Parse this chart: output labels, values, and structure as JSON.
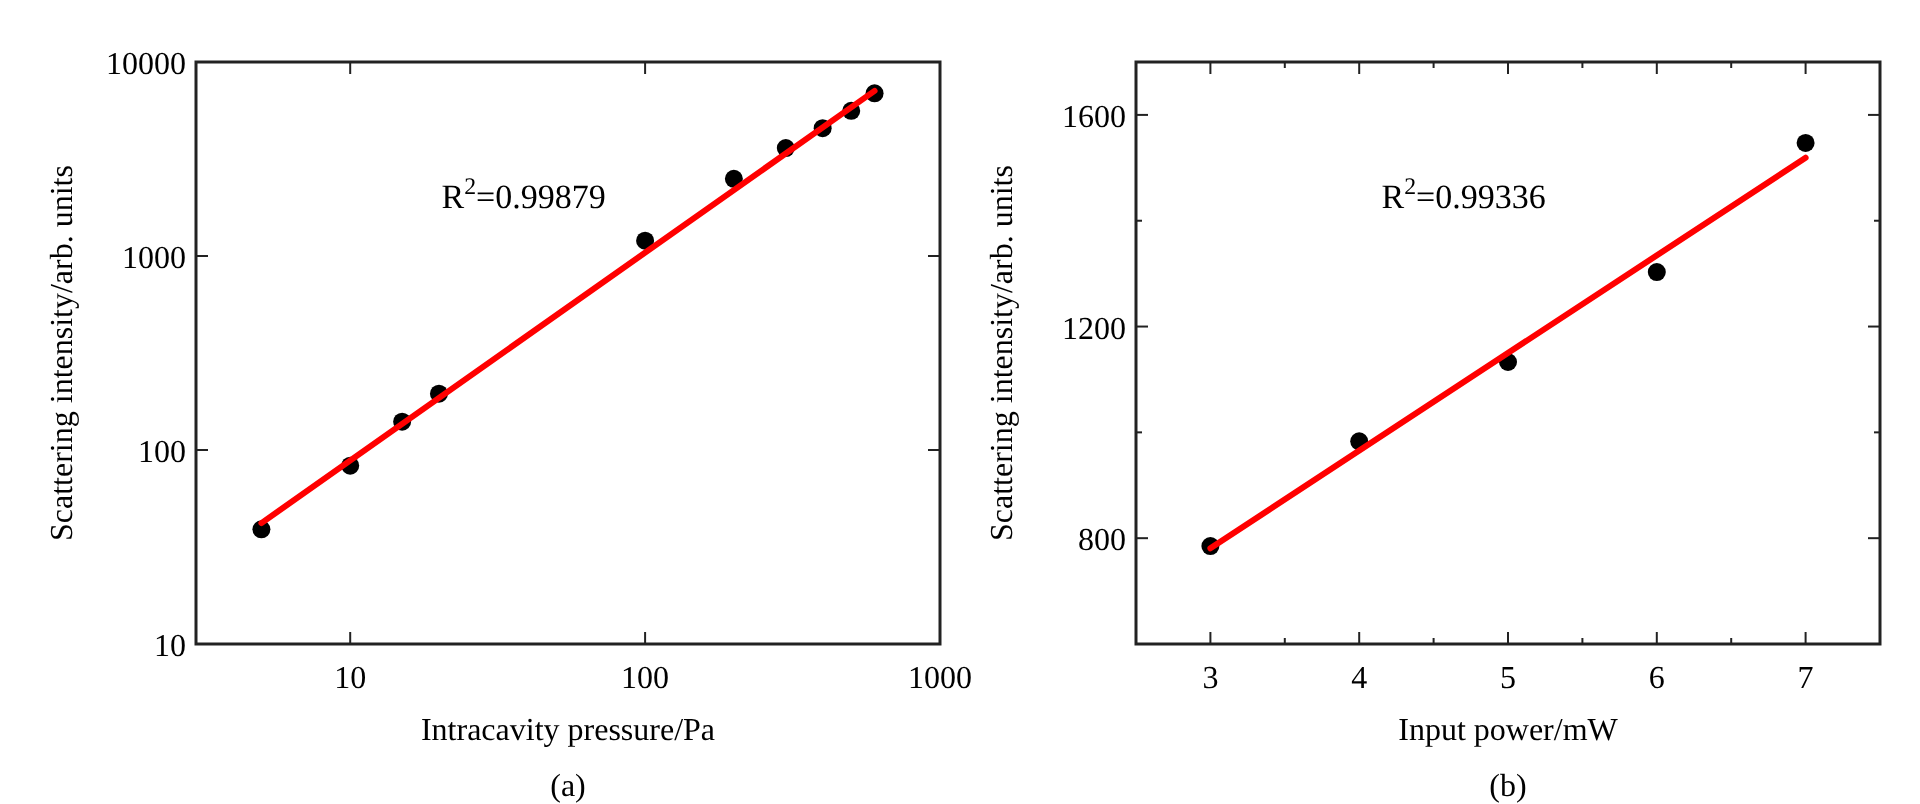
{
  "chart_data": [
    {
      "type": "scatter",
      "xlabel": "Intracavity pressure/Pa",
      "ylabel": "Scattering intensity/arb. units",
      "log": "xy",
      "xlim": [
        3,
        1000
      ],
      "ylim": [
        10,
        10000
      ],
      "xticks": [
        10,
        100,
        1000
      ],
      "yticks": [
        10,
        100,
        1000,
        10000
      ],
      "annotations": [
        "R$^{2}$=0.99879",
        "(a)"
      ],
      "series": [
        {
          "color": "#000000",
          "marker": "circle",
          "x": [
            5,
            10,
            15,
            20,
            100,
            200,
            300,
            400,
            500,
            600
          ],
          "values": [
            39,
            83,
            140,
            195,
            1200,
            2500,
            3600,
            4560,
            5600,
            6900
          ]
        },
        {
          "type": "line",
          "color": "#ff0000",
          "marker": "none",
          "x": [
            5,
            600
          ],
          "values": [
            42,
            7100
          ]
        }
      ]
    },
    {
      "type": "scatter",
      "xlabel": "Input power/mW",
      "ylabel": "Scattering intensity/arb. units",
      "xlim": [
        2.5,
        7.5
      ],
      "ylim": [
        600,
        1700
      ],
      "xticks": [
        {
          "value": 3,
          "label": "3"
        },
        {
          "value": 3.5,
          "label": null
        },
        {
          "value": 4,
          "label": "4"
        },
        {
          "value": 4.5,
          "label": null
        },
        {
          "value": 5,
          "label": "5"
        },
        {
          "value": 5.5,
          "label": null
        },
        {
          "value": 6,
          "label": "6"
        },
        {
          "value": 6.5,
          "label": null
        },
        {
          "value": 7,
          "label": "7"
        }
      ],
      "yticks": [
        {
          "value": 800,
          "label": "800"
        },
        {
          "value": 1000,
          "label": null
        },
        {
          "value": 1200,
          "label": "1200"
        },
        {
          "value": 1400,
          "label": null
        },
        {
          "value": 1600,
          "label": "1600"
        }
      ],
      "annotations": [
        "R$^{2}$=0.99336",
        "(b)"
      ],
      "series": [
        {
          "color": "#000000",
          "marker": "circle",
          "x": [
            3,
            4,
            5,
            6,
            7
          ],
          "values": [
            785,
            983,
            1133,
            1303,
            1547
          ]
        },
        {
          "type": "line",
          "color": "#ff0000",
          "marker": "none",
          "x": [
            3,
            7
          ],
          "values": [
            781,
            1519
          ]
        }
      ]
    }
  ]
}
